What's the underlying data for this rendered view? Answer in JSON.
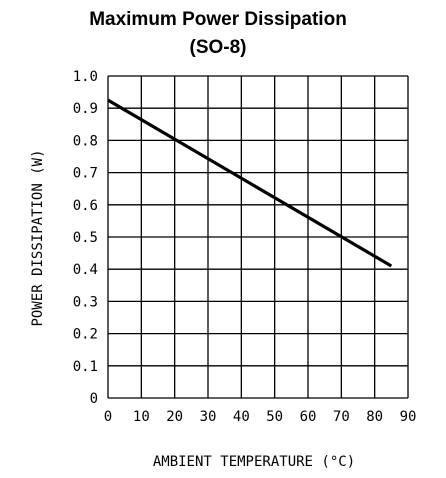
{
  "chart_data": {
    "type": "line",
    "title": "Maximum Power Dissipation",
    "subtitle": "(SO-8)",
    "xlabel": "AMBIENT TEMPERATURE (°C)",
    "ylabel": "POWER DISSIPATION (W)",
    "xlim": [
      0,
      90
    ],
    "ylim": [
      0,
      1.0
    ],
    "x_ticks": [
      "0",
      "10",
      "20",
      "30",
      "40",
      "50",
      "60",
      "70",
      "80",
      "90"
    ],
    "y_ticks": [
      "0",
      "0.1",
      "0.2",
      "0.3",
      "0.4",
      "0.5",
      "0.6",
      "0.7",
      "0.8",
      "0.9",
      "1.0"
    ],
    "grid": true,
    "series": [
      {
        "x": [
          0,
          85
        ],
        "y": [
          0.925,
          0.41
        ]
      }
    ],
    "colors": {
      "line": "#000000",
      "grid": "#000000"
    }
  }
}
